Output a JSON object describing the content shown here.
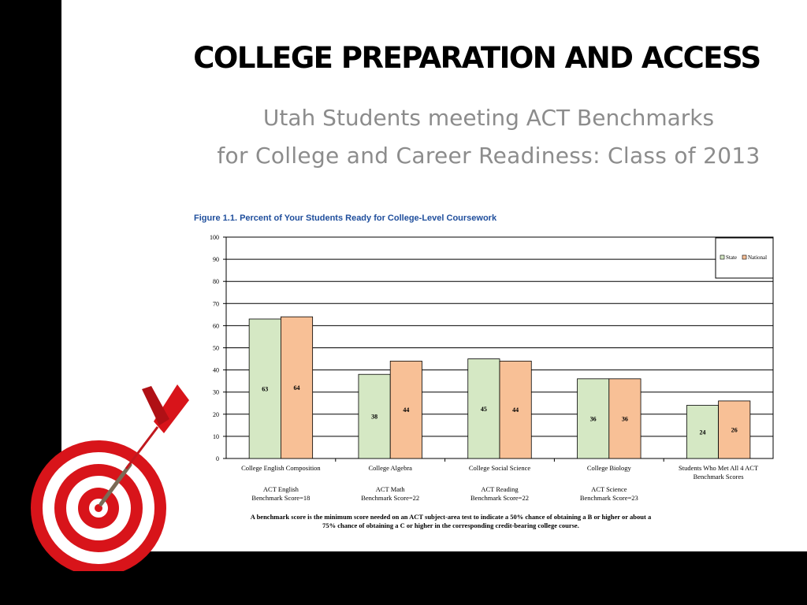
{
  "slide": {
    "title": "COLLEGE PREPARATION AND ACCESS",
    "subtitle_line1": "Utah Students meeting ACT Benchmarks",
    "subtitle_line2": "for College and Career Readiness: Class of 2013"
  },
  "icons": {
    "dartboard": "dartboard-with-dart-icon"
  },
  "colors": {
    "state": "#d5e8c4",
    "national": "#f8c096",
    "figure_title": "#1f4e9c"
  },
  "chart_data": {
    "type": "bar",
    "title": "Figure 1.1.  Percent of Your Students Ready for College-Level Coursework",
    "categories": [
      "College English Composition",
      "College Algebra",
      "College Social Science",
      "College Biology",
      "Students Who Met All 4 ACT Benchmark Scores"
    ],
    "benchmark_labels": [
      [
        "ACT English",
        "Benchmark Score=18"
      ],
      [
        "ACT Math",
        "Benchmark Score=22"
      ],
      [
        "ACT Reading",
        "Benchmark Score=22"
      ],
      [
        "ACT Science",
        "Benchmark Score=23"
      ],
      []
    ],
    "series": [
      {
        "name": "State",
        "values": [
          63,
          38,
          45,
          36,
          24
        ]
      },
      {
        "name": "National",
        "values": [
          64,
          44,
          44,
          36,
          26
        ]
      }
    ],
    "ylim": [
      0,
      100
    ],
    "yticks": [
      0,
      10,
      20,
      30,
      40,
      50,
      60,
      70,
      80,
      90,
      100
    ],
    "grid": true,
    "legend": "top-right",
    "footnote_line1": "A benchmark score is the minimum score needed on an ACT subject-area test to indicate a 50% chance of obtaining a B or higher or about a",
    "footnote_line2": "75% chance of obtaining a C or higher in the corresponding credit-bearing college course."
  }
}
